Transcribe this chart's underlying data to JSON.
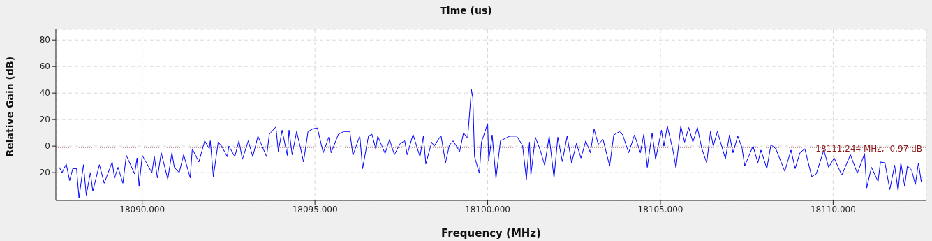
{
  "chart_data": {
    "type": "line",
    "title": "Time (us)",
    "xlabel": "Frequency (MHz)",
    "ylabel": "Relative Gain (dB)",
    "xlim": [
      18087.5,
      18112.7
    ],
    "ylim": [
      -41,
      88
    ],
    "xticks": [
      {
        "value": 18090,
        "label": "18090.000"
      },
      {
        "value": 18095,
        "label": "18095.000"
      },
      {
        "value": 18100,
        "label": "18100.000"
      },
      {
        "value": 18105,
        "label": "18105.000"
      },
      {
        "value": 18110,
        "label": "18110.000"
      }
    ],
    "yticks": [
      -20,
      0,
      20,
      40,
      60,
      80
    ],
    "grid": true,
    "marker": "none",
    "line_style": "solid",
    "ref_lines": [
      {
        "axis": "y",
        "value": -0.97,
        "label": "18111.244 MHz, -0.97 dB",
        "color": "#8b1a1a",
        "line_style": "dotted"
      }
    ],
    "series": [
      {
        "color": "#0000ff",
        "x": [
          18087.6,
          18087.68,
          18087.8,
          18087.9,
          18087.99,
          18088.1,
          18088.17,
          18088.3,
          18088.38,
          18088.5,
          18088.57,
          18088.76,
          18088.9,
          18089.13,
          18089.2,
          18089.3,
          18089.44,
          18089.54,
          18089.78,
          18089.85,
          18089.91,
          18090.0,
          18090.28,
          18090.35,
          18090.44,
          18090.55,
          18090.74,
          18090.86,
          18090.93,
          18091.07,
          18091.2,
          18091.39,
          18091.45,
          18091.64,
          18091.81,
          18091.94,
          18091.97,
          18092.06,
          18092.2,
          18092.3,
          18092.46,
          18092.51,
          18092.68,
          18092.8,
          18092.9,
          18093.07,
          18093.2,
          18093.35,
          18093.6,
          18093.68,
          18093.87,
          18093.94,
          18094.05,
          18094.2,
          18094.25,
          18094.34,
          18094.47,
          18094.57,
          18094.67,
          18094.8,
          18094.94,
          18095.07,
          18095.24,
          18095.4,
          18095.47,
          18095.68,
          18095.84,
          18096.01,
          18096.1,
          18096.22,
          18096.3,
          18096.38,
          18096.55,
          18096.65,
          18096.76,
          18096.82,
          18097.03,
          18097.16,
          18097.3,
          18097.47,
          18097.6,
          18097.67,
          18097.84,
          18098.04,
          18098.14,
          18098.21,
          18098.38,
          18098.45,
          18098.65,
          18098.78,
          18098.89,
          18099.0,
          18099.19,
          18099.3,
          18099.42,
          18099.53,
          18099.57,
          18099.62,
          18099.76,
          18099.82,
          18100.0,
          18100.03,
          18100.13,
          18100.24,
          18100.37,
          18100.64,
          18100.84,
          18101.01,
          18101.12,
          18101.21,
          18101.25,
          18101.38,
          18101.52,
          18101.65,
          18101.78,
          18101.92,
          18102.03,
          18102.16,
          18102.3,
          18102.43,
          18102.57,
          18102.7,
          18102.84,
          18102.97,
          18103.08,
          18103.2,
          18103.34,
          18103.53,
          18103.65,
          18103.82,
          18103.91,
          18104.08,
          18104.25,
          18104.42,
          18104.52,
          18104.62,
          18104.76,
          18104.86,
          18105.03,
          18105.1,
          18105.2,
          18105.37,
          18105.45,
          18105.59,
          18105.7,
          18105.82,
          18105.94,
          18106.07,
          18106.2,
          18106.34,
          18106.45,
          18106.53,
          18106.65,
          18106.88,
          18107.0,
          18107.1,
          18107.24,
          18107.36,
          18107.44,
          18107.68,
          18107.82,
          18107.91,
          18108.08,
          18108.2,
          18108.34,
          18108.6,
          18108.78,
          18108.9,
          18109.04,
          18109.18,
          18109.38,
          18109.51,
          18109.73,
          18109.87,
          18110.03,
          18110.25,
          18110.5,
          18110.7,
          18110.91,
          18110.97,
          18111.11,
          18111.3,
          18111.37,
          18111.5,
          18111.64,
          18111.78,
          18111.88,
          18111.96,
          18112.07,
          18112.15,
          18112.27,
          18112.38,
          18112.47,
          18112.55,
          18112.58
        ],
        "values": [
          -16,
          -20,
          -13.5,
          -26,
          -17,
          -17,
          -39,
          -14,
          -37,
          -20,
          -34,
          -14,
          -28,
          -12,
          -24,
          -16,
          -28,
          -7,
          -21,
          -9,
          -30,
          -7,
          -20,
          -8,
          -24,
          -5,
          -25,
          -5,
          -16,
          -20,
          -6.5,
          -24,
          -2,
          -12,
          4,
          -2,
          4,
          -23,
          3,
          0,
          -8,
          0,
          -8,
          4,
          -10,
          4,
          -8,
          7.5,
          -8,
          9,
          14.5,
          -4,
          12,
          -7,
          12,
          -6.5,
          11,
          0,
          -12,
          11,
          13,
          13.7,
          -5,
          6.7,
          -5,
          9,
          11,
          11,
          -7,
          2,
          7.5,
          -17,
          7.5,
          9,
          -2,
          7.5,
          -5.6,
          5,
          -6.5,
          2,
          4,
          -6.5,
          8.8,
          -8,
          7.5,
          -13.5,
          3,
          0,
          8,
          -12.6,
          0.5,
          4,
          -4,
          10,
          6,
          42.6,
          36.5,
          -8,
          -20.5,
          3,
          17,
          -11,
          8.4,
          -24.5,
          4,
          7.5,
          7.5,
          0.5,
          -25,
          3,
          -22,
          6.7,
          -3,
          -14.4,
          7.5,
          -24,
          6.7,
          -11.7,
          7.5,
          -12.6,
          2,
          -9,
          4,
          -5,
          12.8,
          1.4,
          5,
          -15,
          8.4,
          11,
          8.4,
          -5,
          8.4,
          -5,
          9,
          -16,
          10,
          -10,
          12,
          0,
          15,
          -4,
          -16.5,
          15,
          3,
          14,
          3,
          14,
          -2,
          -12.6,
          11,
          0,
          11,
          -9.5,
          8.4,
          -5,
          7.5,
          -1,
          -15,
          0,
          -12.6,
          -3,
          -17,
          1,
          -2,
          -19,
          -3,
          -17,
          -5,
          -2,
          -23,
          -21,
          -3,
          -16,
          -9,
          -22,
          -6.5,
          -20.5,
          -5.6,
          -31.6,
          -16,
          -26.7,
          -12,
          -12.6,
          -32.8,
          -14.4,
          -33.7,
          -12.6,
          -30,
          -15,
          -18,
          -29,
          -12.6,
          -26.7,
          -23
        ]
      }
    ]
  }
}
